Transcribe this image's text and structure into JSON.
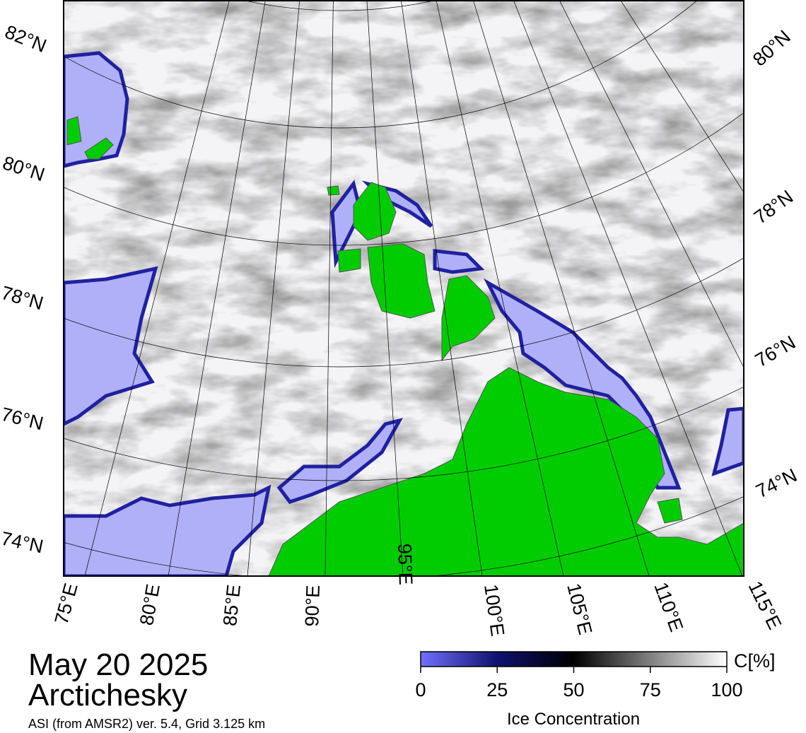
{
  "map": {
    "date": "May 20 2025",
    "region": "Arctichesky",
    "source": "ASI (from AMSR2) ver. 5.4,  Grid 3.125 km",
    "lat_labels_left": [
      "82°N",
      "80°N",
      "78°N",
      "76°N",
      "74°N"
    ],
    "lat_labels_right": [
      "80°N",
      "78°N",
      "76°N",
      "74°N"
    ],
    "lon_labels": [
      "75°E",
      "80°E",
      "85°E",
      "90°E",
      "95°E",
      "100°E",
      "105°E",
      "110°E",
      "115°E"
    ]
  },
  "colorbar": {
    "unit": "C[%]",
    "title": "Ice Concentration",
    "range": [
      0,
      100
    ],
    "ticks": [
      0,
      25,
      50,
      75,
      100
    ]
  }
}
